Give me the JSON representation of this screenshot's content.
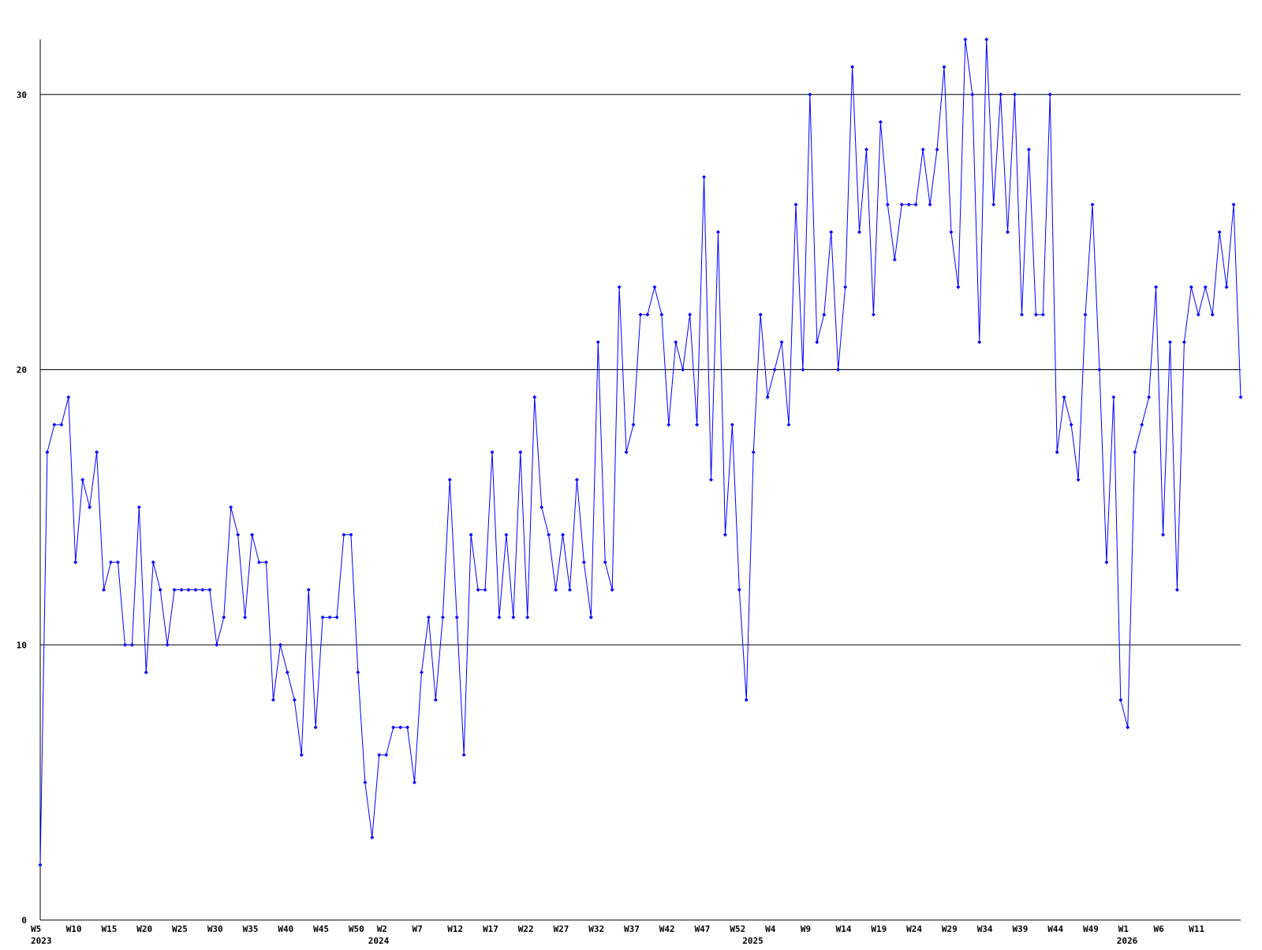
{
  "chart_data": {
    "type": "line",
    "title": "",
    "xlabel": "",
    "ylabel": "",
    "ylim": [
      0,
      32
    ],
    "y_ticks": [
      0,
      10,
      20,
      30
    ],
    "grid": "horizontal",
    "x_tick_labels": [
      {
        "week_index": 0,
        "label": "W5"
      },
      {
        "week_index": 5,
        "label": "W10"
      },
      {
        "week_index": 10,
        "label": "W15"
      },
      {
        "week_index": 15,
        "label": "W20"
      },
      {
        "week_index": 20,
        "label": "W25"
      },
      {
        "week_index": 25,
        "label": "W30"
      },
      {
        "week_index": 30,
        "label": "W35"
      },
      {
        "week_index": 35,
        "label": "W40"
      },
      {
        "week_index": 40,
        "label": "W45"
      },
      {
        "week_index": 45,
        "label": "W50"
      },
      {
        "week_index": 49,
        "label": "W2"
      },
      {
        "week_index": 54,
        "label": "W7"
      },
      {
        "week_index": 59,
        "label": "W12"
      },
      {
        "week_index": 64,
        "label": "W17"
      },
      {
        "week_index": 69,
        "label": "W22"
      },
      {
        "week_index": 74,
        "label": "W27"
      },
      {
        "week_index": 79,
        "label": "W32"
      },
      {
        "week_index": 84,
        "label": "W37"
      },
      {
        "week_index": 89,
        "label": "W42"
      },
      {
        "week_index": 94,
        "label": "W47"
      },
      {
        "week_index": 99,
        "label": "W52"
      },
      {
        "week_index": 104,
        "label": "W4"
      },
      {
        "week_index": 109,
        "label": "W9"
      },
      {
        "week_index": 114,
        "label": "W14"
      },
      {
        "week_index": 119,
        "label": "W19"
      },
      {
        "week_index": 124,
        "label": "W24"
      },
      {
        "week_index": 129,
        "label": "W29"
      },
      {
        "week_index": 134,
        "label": "W34"
      },
      {
        "week_index": 139,
        "label": "W39"
      },
      {
        "week_index": 144,
        "label": "W44"
      },
      {
        "week_index": 149,
        "label": "W49"
      },
      {
        "week_index": 154,
        "label": "W1"
      },
      {
        "week_index": 159,
        "label": "W6"
      },
      {
        "week_index": 164,
        "label": "W11"
      }
    ],
    "year_labels": [
      {
        "week_index": 0,
        "label": "2023"
      },
      {
        "week_index": 48,
        "label": "2024"
      },
      {
        "week_index": 101,
        "label": "2025"
      },
      {
        "week_index": 154,
        "label": "2026"
      }
    ],
    "series": [
      {
        "color": "#0000ff",
        "values": [
          2,
          17,
          18,
          18,
          19,
          13,
          16,
          15,
          17,
          12,
          13,
          13,
          10,
          10,
          15,
          9,
          13,
          12,
          10,
          12,
          12,
          12,
          12,
          12,
          12,
          10,
          11,
          15,
          14,
          11,
          14,
          13,
          13,
          8,
          10,
          9,
          8,
          6,
          12,
          7,
          11,
          11,
          11,
          14,
          14,
          9,
          5,
          3,
          6,
          6,
          7,
          7,
          7,
          5,
          9,
          11,
          8,
          11,
          16,
          11,
          6,
          14,
          12,
          12,
          17,
          11,
          14,
          11,
          17,
          11,
          19,
          15,
          14,
          12,
          14,
          12,
          16,
          13,
          11,
          21,
          13,
          12,
          23,
          17,
          18,
          22,
          22,
          23,
          22,
          18,
          21,
          20,
          22,
          18,
          27,
          16,
          25,
          14,
          18,
          12,
          8,
          17,
          22,
          19,
          20,
          21,
          18,
          26,
          20,
          30,
          21,
          22,
          25,
          20,
          23,
          31,
          25,
          28,
          22,
          29,
          26,
          24,
          26,
          26,
          26,
          28,
          26,
          28,
          31,
          25,
          23,
          32,
          30,
          21,
          32,
          26,
          30,
          25,
          30,
          22,
          28,
          22,
          22,
          30,
          17,
          19,
          18,
          16,
          22,
          26,
          20,
          13,
          19,
          8,
          7,
          17,
          18,
          19,
          23,
          14,
          21,
          12,
          21,
          23,
          22,
          23,
          22,
          25,
          23,
          26,
          19
        ]
      }
    ]
  }
}
